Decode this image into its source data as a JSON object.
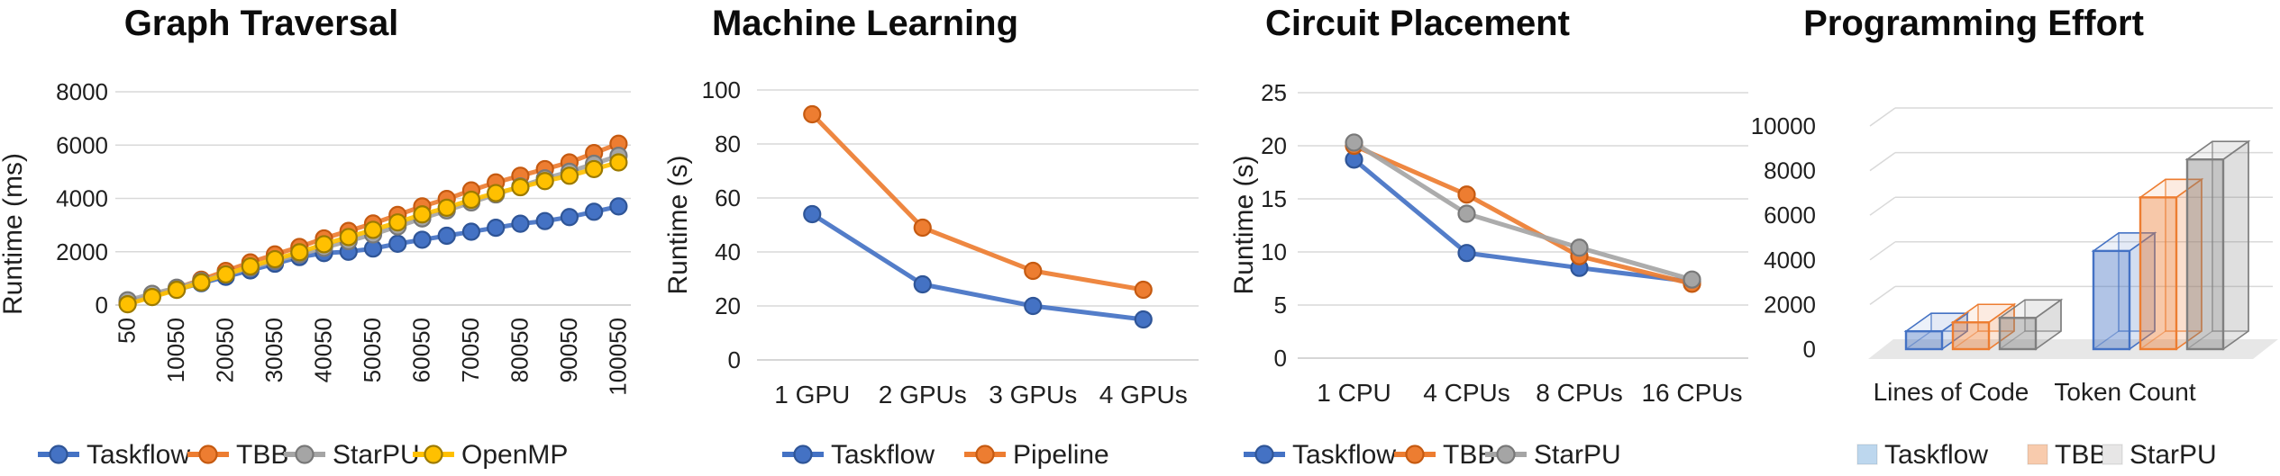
{
  "page": {
    "background": "#FFFFFF",
    "text_color": "#1F1F1F"
  },
  "chart_data": [
    {
      "type": "line",
      "title": "Graph Traversal",
      "ylabel": "Runtime (ms)",
      "x": [
        50,
        5050,
        10050,
        15050,
        20050,
        25050,
        30050,
        35050,
        40050,
        45050,
        50050,
        55050,
        60050,
        65050,
        70050,
        75050,
        80050,
        85050,
        90050,
        95050,
        100050
      ],
      "xtick_labels": [
        "50",
        "10050",
        "20050",
        "30050",
        "40050",
        "50050",
        "60050",
        "70050",
        "80050",
        "90050",
        "100050"
      ],
      "ylim": [
        0,
        8000
      ],
      "yticks": [
        0,
        2000,
        4000,
        6000,
        8000
      ],
      "grid": true,
      "legend_position": "bottom",
      "series": [
        {
          "name": "Taskflow",
          "color": "#4472C4",
          "edge": "#2F5597",
          "values": [
            120,
            350,
            580,
            820,
            1060,
            1300,
            1550,
            1800,
            1950,
            2000,
            2120,
            2300,
            2450,
            2600,
            2750,
            2900,
            3050,
            3150,
            3300,
            3500,
            3700
          ]
        },
        {
          "name": "TBB",
          "color": "#ED7D31",
          "edge": "#C55A11",
          "values": [
            60,
            350,
            640,
            950,
            1280,
            1600,
            1900,
            2180,
            2500,
            2780,
            3060,
            3380,
            3700,
            3980,
            4300,
            4600,
            4850,
            5100,
            5350,
            5700,
            6050
          ]
        },
        {
          "name": "StarPU",
          "color": "#A5A5A5",
          "edge": "#787878",
          "values": [
            180,
            420,
            650,
            900,
            1150,
            1400,
            1650,
            1900,
            2150,
            2400,
            2650,
            2950,
            3250,
            3550,
            3850,
            4150,
            4450,
            4750,
            5000,
            5300,
            5600
          ]
        },
        {
          "name": "OpenMP",
          "color": "#FFC000",
          "edge": "#9C7A00",
          "values": [
            30,
            300,
            570,
            850,
            1150,
            1450,
            1720,
            1980,
            2280,
            2550,
            2820,
            3100,
            3400,
            3650,
            3950,
            4200,
            4420,
            4650,
            4850,
            5100,
            5350
          ]
        }
      ]
    },
    {
      "type": "line",
      "title": "Machine Learning",
      "ylabel": "Runtime (s)",
      "categories": [
        "1 GPU",
        "2 GPUs",
        "3 GPUs",
        "4 GPUs"
      ],
      "ylim": [
        0,
        100
      ],
      "yticks": [
        0,
        20,
        40,
        60,
        80,
        100
      ],
      "grid": true,
      "legend_position": "bottom",
      "series": [
        {
          "name": "Taskflow",
          "color": "#4472C4",
          "edge": "#2F5597",
          "values": [
            54,
            28,
            20,
            15
          ]
        },
        {
          "name": "Pipeline",
          "color": "#ED7D31",
          "edge": "#C55A11",
          "values": [
            91,
            49,
            33,
            26
          ]
        }
      ]
    },
    {
      "type": "line",
      "title": "Circuit Placement",
      "ylabel": "Runtime (s)",
      "categories": [
        "1 CPU",
        "4 CPUs",
        "8 CPUs",
        "16 CPUs"
      ],
      "ylim": [
        0,
        25
      ],
      "yticks": [
        0,
        5,
        10,
        15,
        20,
        25
      ],
      "grid": true,
      "legend_position": "bottom",
      "series": [
        {
          "name": "Taskflow",
          "color": "#4472C4",
          "edge": "#2F5597",
          "values": [
            18.7,
            9.9,
            8.5,
            7.2
          ]
        },
        {
          "name": "TBB",
          "color": "#ED7D31",
          "edge": "#C55A11",
          "values": [
            20.0,
            15.4,
            9.6,
            7.0
          ]
        },
        {
          "name": "StarPU",
          "color": "#A5A5A5",
          "edge": "#787878",
          "values": [
            20.3,
            13.6,
            10.4,
            7.4
          ]
        }
      ]
    },
    {
      "type": "bar3d",
      "title": "Programming Effort",
      "categories": [
        "Lines of Code",
        "Token Count"
      ],
      "ylim": [
        0,
        10000
      ],
      "yticks": [
        0,
        2000,
        4000,
        6000,
        8000,
        10000
      ],
      "grid": true,
      "legend_position": "bottom",
      "series": [
        {
          "name": "Taskflow",
          "fill": "#BDD7EE",
          "edge": "#4472C4",
          "values": [
            800,
            4400
          ]
        },
        {
          "name": "TBB",
          "fill": "#F8CBAD",
          "edge": "#ED7D31",
          "values": [
            1200,
            6800
          ]
        },
        {
          "name": "StarPU",
          "fill": "#E7E6E6",
          "edge": "#7F7F7F",
          "values": [
            1400,
            8500
          ]
        }
      ]
    }
  ]
}
